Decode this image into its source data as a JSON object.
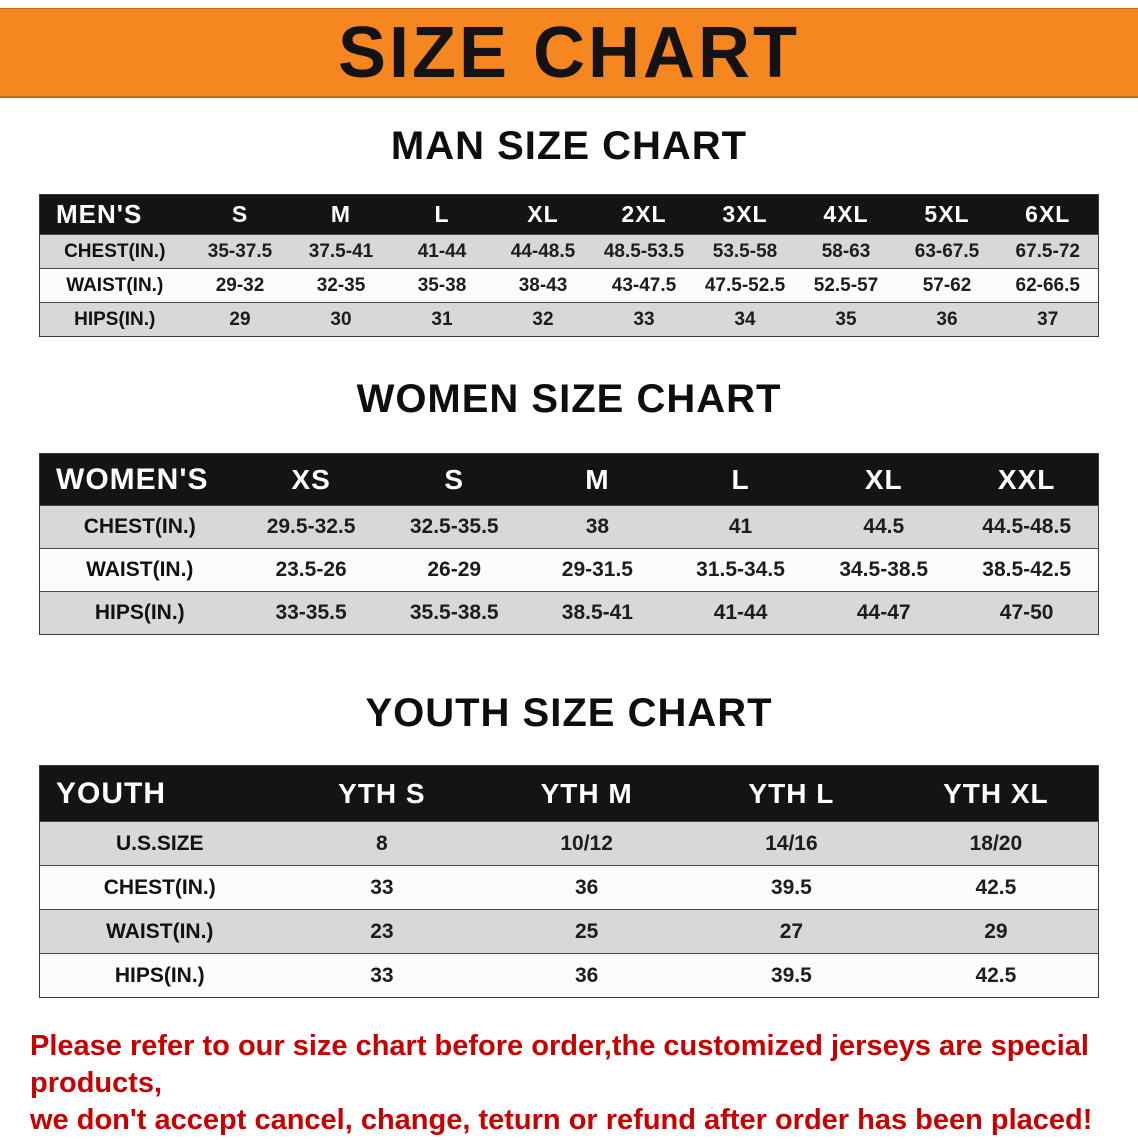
{
  "banner": {
    "title": "SIZE CHART"
  },
  "colors": {
    "banner_orange": "#F6861F",
    "header_black": "#141414",
    "row_gray": "#D8D8D8",
    "row_white": "#FCFCFC",
    "disclaimer_red": "#C80000"
  },
  "sections": [
    {
      "id": "men",
      "heading": "MAN SIZE CHART",
      "table": {
        "title": "MEN'S",
        "columns": [
          "S",
          "M",
          "L",
          "XL",
          "2XL",
          "3XL",
          "4XL",
          "5XL",
          "6XL"
        ],
        "rows": [
          {
            "label": "CHEST(IN.)",
            "values": [
              "35-37.5",
              "37.5-41",
              "41-44",
              "44-48.5",
              "48.5-53.5",
              "53.5-58",
              "58-63",
              "63-67.5",
              "67.5-72"
            ]
          },
          {
            "label": "WAIST(IN.)",
            "values": [
              "29-32",
              "32-35",
              "35-38",
              "38-43",
              "43-47.5",
              "47.5-52.5",
              "52.5-57",
              "57-62",
              "62-66.5"
            ]
          },
          {
            "label": "HIPS(IN.)",
            "values": [
              "29",
              "30",
              "31",
              "32",
              "33",
              "34",
              "35",
              "36",
              "37"
            ]
          }
        ]
      }
    },
    {
      "id": "women",
      "heading": "WOMEN SIZE CHART",
      "table": {
        "title": "WOMEN'S",
        "columns": [
          "XS",
          "S",
          "M",
          "L",
          "XL",
          "XXL"
        ],
        "rows": [
          {
            "label": "CHEST(IN.)",
            "values": [
              "29.5-32.5",
              "32.5-35.5",
              "38",
              "41",
              "44.5",
              "44.5-48.5"
            ]
          },
          {
            "label": "WAIST(IN.)",
            "values": [
              "23.5-26",
              "26-29",
              "29-31.5",
              "31.5-34.5",
              "34.5-38.5",
              "38.5-42.5"
            ]
          },
          {
            "label": "HIPS(IN.)",
            "values": [
              "33-35.5",
              "35.5-38.5",
              "38.5-41",
              "41-44",
              "44-47",
              "47-50"
            ]
          }
        ]
      }
    },
    {
      "id": "youth",
      "heading": "YOUTH SIZE CHART",
      "table": {
        "title": "YOUTH",
        "columns": [
          "YTH S",
          "YTH M",
          "YTH L",
          "YTH XL"
        ],
        "rows": [
          {
            "label": "U.S.SIZE",
            "values": [
              "8",
              "10/12",
              "14/16",
              "18/20"
            ]
          },
          {
            "label": "CHEST(IN.)",
            "values": [
              "33",
              "36",
              "39.5",
              "42.5"
            ]
          },
          {
            "label": "WAIST(IN.)",
            "values": [
              "23",
              "25",
              "27",
              "29"
            ]
          },
          {
            "label": "HIPS(IN.)",
            "values": [
              "33",
              "36",
              "39.5",
              "42.5"
            ]
          }
        ]
      }
    }
  ],
  "disclaimer": {
    "line1": "Please refer to our size chart before order,the customized jerseys are special products,",
    "line2": "we don't accept cancel, change, teturn or refund after order has been placed!"
  }
}
